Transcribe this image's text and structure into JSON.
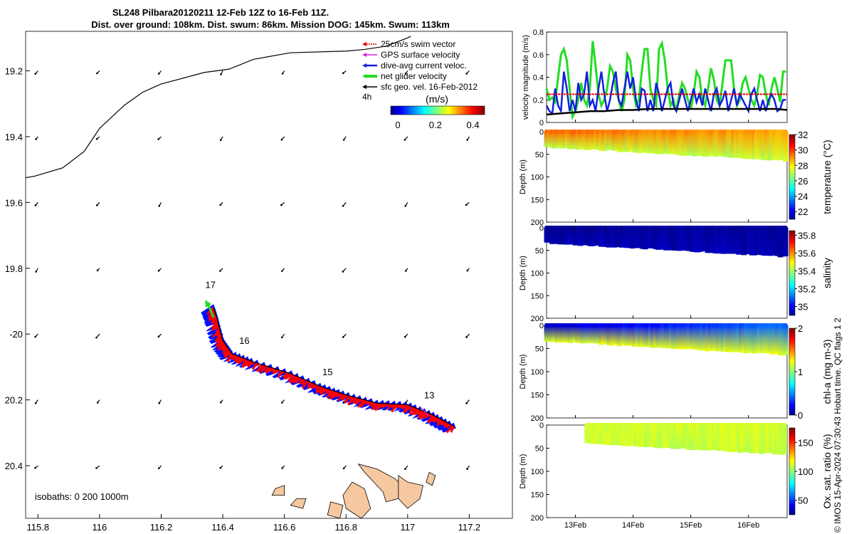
{
  "title_line1": "SL248 Pilbara20120211 12-Feb 12Z to 16-Feb 11Z.",
  "title_line2": "Dist. over ground: 108km. Dist. swum: 86km. Mission DOG: 145km. Swum: 113km",
  "footer": "© IMOS 15-Apr-2024 07:30:43 Hobart time. QC flags 1  2",
  "colors": {
    "swim_vector": "#e00000",
    "gps_velocity": "#e020e0",
    "dive_avg": "#1020e0",
    "net_glider": "#22dd22",
    "sfc_geo": "#000000",
    "track_red": "#ff0000",
    "track_blue": "#0010ff",
    "land": "#f5c8a0"
  },
  "chart_data": [
    {
      "type": "scatter",
      "id": "map",
      "xlabel": "",
      "ylabel": "",
      "xlim": [
        115.76,
        117.34
      ],
      "ylim": [
        -20.56,
        -19.08
      ],
      "xticks": [
        115.8,
        116,
        116.2,
        116.4,
        116.6,
        116.8,
        117,
        117.2
      ],
      "xtick_labels": [
        "115.8",
        "116",
        "116.2",
        "116.4",
        "116.6",
        "116.8",
        "117",
        "117.2"
      ],
      "yticks": [
        -19.2,
        -19.4,
        -19.6,
        -19.8,
        -20,
        -20.2,
        -20.4
      ],
      "ytick_labels": [
        "19.2",
        "19.4",
        "19.6",
        "19.8",
        "-20",
        "20.2",
        "20.4"
      ],
      "legend": [
        {
          "label": "25cm/s swim vector"
        },
        {
          "label": "GPS surface velocity"
        },
        {
          "label": "dive-avg current veloc."
        },
        {
          "label": "net glider velocity"
        },
        {
          "label": "sfc geo. vel. 16-Feb-2012"
        }
      ],
      "legend_note": "4h",
      "colorbar": {
        "title": "(m/s)",
        "ticks": [
          "0",
          "0.2",
          "0.4"
        ],
        "range": [
          0,
          0.5
        ]
      },
      "isobath_label": "isobaths: 0   200   1000m",
      "coastline": [
        [
          115.76,
          -19.525
        ],
        [
          115.79,
          -19.52
        ],
        [
          115.88,
          -19.495
        ],
        [
          115.95,
          -19.445
        ],
        [
          116.0,
          -19.375
        ],
        [
          116.08,
          -19.305
        ],
        [
          116.14,
          -19.265
        ],
        [
          116.2,
          -19.24
        ],
        [
          116.34,
          -19.205
        ],
        [
          116.42,
          -19.195
        ],
        [
          116.5,
          -19.165
        ],
        [
          116.62,
          -19.145
        ],
        [
          116.8,
          -19.14
        ],
        [
          116.86,
          -19.135
        ],
        [
          116.93,
          -19.125
        ],
        [
          117.0,
          -19.1
        ],
        [
          117.01,
          -19.095
        ]
      ],
      "day_labels": [
        {
          "label": "17",
          "lon": 116.36,
          "lat": -19.86
        },
        {
          "label": "16",
          "lon": 116.47,
          "lat": -20.03
        },
        {
          "label": "15",
          "lon": 116.74,
          "lat": -20.125
        },
        {
          "label": "13",
          "lon": 117.07,
          "lat": -20.195
        }
      ],
      "track": [
        [
          117.15,
          -20.28
        ],
        [
          117.08,
          -20.245
        ],
        [
          117.0,
          -20.215
        ],
        [
          116.9,
          -20.21
        ],
        [
          116.8,
          -20.185
        ],
        [
          116.72,
          -20.16
        ],
        [
          116.62,
          -20.12
        ],
        [
          116.5,
          -20.085
        ],
        [
          116.43,
          -20.06
        ],
        [
          116.4,
          -20.02
        ],
        [
          116.38,
          -19.95
        ],
        [
          116.37,
          -19.92
        ]
      ]
    },
    {
      "type": "line",
      "id": "velocity",
      "ylabel": "velocity magnitude (m/s)",
      "ylim": [
        0,
        0.8
      ],
      "yticks": [
        "0",
        "0.2",
        "0.4",
        "0.6",
        "0.8"
      ],
      "xlim": [
        12.5,
        16.67
      ],
      "series": [
        {
          "name": "net glider velocity",
          "x": [
            12.5,
            12.55,
            12.6,
            12.65,
            12.7,
            12.75,
            12.8,
            12.85,
            12.9,
            12.95,
            13.0,
            13.05,
            13.1,
            13.15,
            13.2,
            13.25,
            13.3,
            13.35,
            13.4,
            13.45,
            13.5,
            13.55,
            13.6,
            13.65,
            13.7,
            13.75,
            13.8,
            13.85,
            13.9,
            13.95,
            14.0,
            14.05,
            14.1,
            14.15,
            14.2,
            14.25,
            14.3,
            14.35,
            14.4,
            14.45,
            14.5,
            14.55,
            14.6,
            14.65,
            14.7,
            14.75,
            14.8,
            14.85,
            14.9,
            14.95,
            15.0,
            15.05,
            15.1,
            15.15,
            15.2,
            15.25,
            15.3,
            15.35,
            15.4,
            15.45,
            15.5,
            15.55,
            15.6,
            15.65,
            15.7,
            15.75,
            15.8,
            15.85,
            15.9,
            15.95,
            16.0,
            16.05,
            16.1,
            16.15,
            16.2,
            16.25,
            16.3,
            16.35,
            16.4,
            16.45,
            16.5,
            16.55,
            16.6,
            16.65
          ],
          "values": [
            0.3,
            0.2,
            0.22,
            0.18,
            0.4,
            0.6,
            0.65,
            0.55,
            0.3,
            0.05,
            0.1,
            0.2,
            0.35,
            0.2,
            0.15,
            0.3,
            0.72,
            0.5,
            0.25,
            0.15,
            0.2,
            0.3,
            0.5,
            0.45,
            0.3,
            0.2,
            0.1,
            0.2,
            0.6,
            0.55,
            0.3,
            0.15,
            0.2,
            0.45,
            0.65,
            0.65,
            0.3,
            0.2,
            0.15,
            0.65,
            0.7,
            0.55,
            0.3,
            0.15,
            0.2,
            0.1,
            0.25,
            0.35,
            0.3,
            0.2,
            0.12,
            0.25,
            0.45,
            0.4,
            0.2,
            0.15,
            0.3,
            0.48,
            0.38,
            0.2,
            0.15,
            0.35,
            0.55,
            0.55,
            0.55,
            0.3,
            0.15,
            0.2,
            0.35,
            0.4,
            0.3,
            0.2,
            0.15,
            0.25,
            0.42,
            0.4,
            0.25,
            0.15,
            0.3,
            0.4,
            0.3,
            0.18,
            0.45,
            0.45
          ]
        },
        {
          "name": "dive-avg current veloc.",
          "x": [
            12.5,
            12.55,
            12.6,
            12.65,
            12.7,
            12.75,
            12.8,
            12.85,
            12.9,
            12.95,
            13.0,
            13.05,
            13.1,
            13.15,
            13.2,
            13.25,
            13.3,
            13.35,
            13.4,
            13.45,
            13.5,
            13.55,
            13.6,
            13.65,
            13.7,
            13.75,
            13.8,
            13.85,
            13.9,
            13.95,
            14.0,
            14.05,
            14.1,
            14.15,
            14.2,
            14.25,
            14.3,
            14.35,
            14.4,
            14.45,
            14.5,
            14.55,
            14.6,
            14.65,
            14.7,
            14.75,
            14.8,
            14.85,
            14.9,
            14.95,
            15.0,
            15.05,
            15.1,
            15.15,
            15.2,
            15.25,
            15.3,
            15.35,
            15.4,
            15.45,
            15.5,
            15.55,
            15.6,
            15.65,
            15.7,
            15.75,
            15.8,
            15.85,
            15.9,
            15.95,
            16.0,
            16.05,
            16.1,
            16.15,
            16.2,
            16.25,
            16.3,
            16.35,
            16.4,
            16.45,
            16.5,
            16.55,
            16.6,
            16.65
          ],
          "values": [
            0.15,
            0.1,
            0.08,
            0.3,
            0.15,
            0.1,
            0.45,
            0.3,
            0.1,
            0.2,
            0.1,
            0.35,
            0.2,
            0.25,
            0.45,
            0.15,
            0.2,
            0.1,
            0.3,
            0.45,
            0.25,
            0.1,
            0.2,
            0.35,
            0.45,
            0.2,
            0.15,
            0.3,
            0.45,
            0.3,
            0.4,
            0.2,
            0.1,
            0.3,
            0.28,
            0.1,
            0.2,
            0.1,
            0.35,
            0.25,
            0.1,
            0.2,
            0.3,
            0.35,
            0.15,
            0.1,
            0.2,
            0.3,
            0.2,
            0.1,
            0.2,
            0.3,
            0.18,
            0.25,
            0.15,
            0.3,
            0.2,
            0.1,
            0.25,
            0.3,
            0.15,
            0.2,
            0.28,
            0.1,
            0.2,
            0.3,
            0.15,
            0.25,
            0.2,
            0.15,
            0.1,
            0.25,
            0.3,
            0.2,
            0.1,
            0.2,
            0.1,
            0.2,
            0.25,
            0.2,
            0.1,
            0.12,
            0.2,
            0.2
          ]
        },
        {
          "name": "25cm/s swim vector",
          "x": [
            12.5,
            12.75,
            13.0,
            13.25,
            13.5,
            13.75,
            14.0,
            14.25,
            14.5,
            14.75,
            15.0,
            15.25,
            15.5,
            15.75,
            16.0,
            16.25,
            16.5,
            16.67
          ],
          "values": [
            0.25,
            0.25,
            0.25,
            0.25,
            0.25,
            0.25,
            0.25,
            0.25,
            0.25,
            0.25,
            0.25,
            0.25,
            0.25,
            0.25,
            0.25,
            0.25,
            0.25,
            0.25
          ]
        },
        {
          "name": "sfc geo. vel.",
          "x": [
            12.5,
            12.75,
            13.0,
            13.25,
            13.5,
            13.75,
            14.0,
            14.25,
            14.5,
            14.75,
            15.0,
            15.25,
            15.5,
            15.75,
            16.0,
            16.25,
            16.5,
            16.67
          ],
          "values": [
            0.07,
            0.08,
            0.09,
            0.1,
            0.1,
            0.11,
            0.11,
            0.12,
            0.12,
            0.12,
            0.12,
            0.12,
            0.12,
            0.12,
            0.12,
            0.12,
            0.12,
            0.11
          ]
        }
      ]
    },
    {
      "type": "heatmap",
      "id": "temperature",
      "ylabel": "Depth (m)",
      "cbar_label": "temperature (°C)",
      "cbar_ticks": [
        "22",
        "24",
        "26",
        "28",
        "30",
        "32"
      ],
      "yticks": [
        "0",
        "50",
        "100",
        "150",
        "200"
      ],
      "range": [
        21,
        32
      ],
      "surface_value": 29.5,
      "deep_value": 27.2
    },
    {
      "type": "heatmap",
      "id": "salinity",
      "ylabel": "Depth (m)",
      "cbar_label": "salinity",
      "cbar_ticks": [
        "35",
        "35.2",
        "35.4",
        "35.6",
        "35.8"
      ],
      "yticks": [
        "0",
        "50",
        "100",
        "150",
        "200"
      ],
      "range": [
        34.9,
        35.85
      ],
      "surface_value": 34.92,
      "deep_value": 34.95
    },
    {
      "type": "heatmap",
      "id": "chla",
      "ylabel": "Depth (m)",
      "cbar_label": "chl-a (mg m-3)",
      "cbar_ticks": [
        "0",
        "1",
        "2"
      ],
      "yticks": [
        "0",
        "50",
        "100",
        "150",
        "200"
      ],
      "range": [
        0,
        2
      ],
      "surface_value": 0.15,
      "deep_value": 1.2
    },
    {
      "type": "heatmap",
      "id": "oxygen",
      "ylabel": "Depth (m)",
      "cbar_label": "Ox. sat. ratio (%)",
      "cbar_ticks": [
        "50",
        "100",
        "150"
      ],
      "yticks": [
        "0",
        "50",
        "100",
        "150",
        "200"
      ],
      "range": [
        25,
        175
      ],
      "surface_value": 113,
      "deep_value": 110
    }
  ],
  "time_axis": {
    "labels": [
      "13Feb",
      "14Feb",
      "15Feb",
      "16Feb"
    ],
    "values": [
      13,
      14,
      15,
      16
    ]
  }
}
